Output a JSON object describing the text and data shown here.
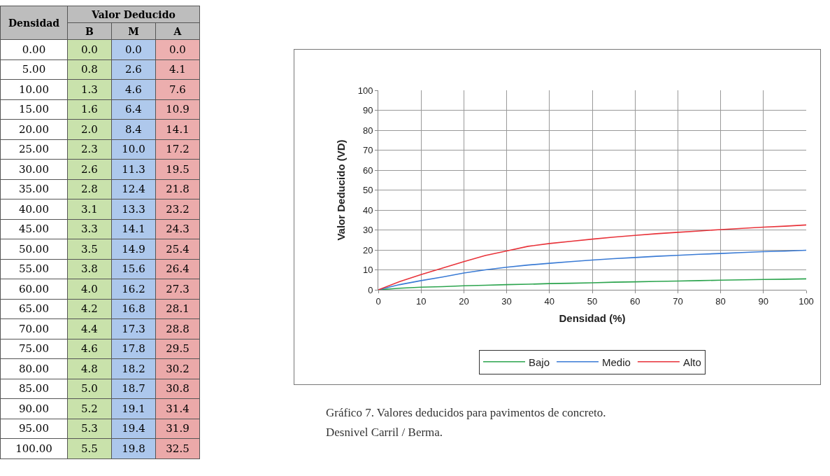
{
  "chart_data": [
    {
      "type": "heatmap",
      "xlabel": "Valor Deducido",
      "ylabel": "Densidad",
      "categories": [
        "B",
        "M",
        "A"
      ],
      "y_categories": [
        "0.00",
        "5.00",
        "10.00",
        "15.00",
        "20.00",
        "25.00",
        "30.00",
        "35.00",
        "40.00",
        "45.00",
        "50.00",
        "55.00",
        "60.00",
        "65.00",
        "70.00",
        "75.00",
        "80.00",
        "85.00",
        "90.00",
        "95.00",
        "100.00"
      ],
      "colors": [
        "#c5e0a5",
        "#a9c5eb",
        "#eba9a9"
      ],
      "data_labels": true,
      "cells": [
        [
          0.0,
          0.0,
          0.0
        ],
        [
          0.8,
          2.6,
          4.1
        ],
        [
          1.3,
          4.6,
          7.6
        ],
        [
          1.6,
          6.4,
          10.9
        ],
        [
          2.0,
          8.4,
          14.1
        ],
        [
          2.3,
          10.0,
          17.2
        ],
        [
          2.6,
          11.3,
          19.5
        ],
        [
          2.8,
          12.4,
          21.8
        ],
        [
          3.1,
          13.3,
          23.2
        ],
        [
          3.3,
          14.1,
          24.3
        ],
        [
          3.5,
          14.9,
          25.4
        ],
        [
          3.8,
          15.6,
          26.4
        ],
        [
          4.0,
          16.2,
          27.3
        ],
        [
          4.2,
          16.8,
          28.1
        ],
        [
          4.4,
          17.3,
          28.8
        ],
        [
          4.6,
          17.8,
          29.5
        ],
        [
          4.8,
          18.2,
          30.2
        ],
        [
          5.0,
          18.7,
          30.8
        ],
        [
          5.2,
          19.1,
          31.4
        ],
        [
          5.3,
          19.4,
          31.9
        ],
        [
          5.5,
          19.8,
          32.5
        ]
      ],
      "cell_labels": [
        [
          "0.0",
          "0.0",
          "0.0"
        ],
        [
          "0.8",
          "2.6",
          "4.1"
        ],
        [
          "1.3",
          "4.6",
          "7.6"
        ],
        [
          "1.6",
          "6.4",
          "10.9"
        ],
        [
          "2.0",
          "8.4",
          "14.1"
        ],
        [
          "2.3",
          "10.0",
          "17.2"
        ],
        [
          "2.6",
          "11.3",
          "19.5"
        ],
        [
          "2.8",
          "12.4",
          "21.8"
        ],
        [
          "3.1",
          "13.3",
          "23.2"
        ],
        [
          "3.3",
          "14.1",
          "24.3"
        ],
        [
          "3.5",
          "14.9",
          "25.4"
        ],
        [
          "3.8",
          "15.6",
          "26.4"
        ],
        [
          "4.0",
          "16.2",
          "27.3"
        ],
        [
          "4.2",
          "16.8",
          "28.1"
        ],
        [
          "4.4",
          "17.3",
          "28.8"
        ],
        [
          "4.6",
          "17.8",
          "29.5"
        ],
        [
          "4.8",
          "18.2",
          "30.2"
        ],
        [
          "5.0",
          "18.7",
          "30.8"
        ],
        [
          "5.2",
          "19.1",
          "31.4"
        ],
        [
          "5.3",
          "19.4",
          "31.9"
        ],
        [
          "5.5",
          "19.8",
          "32.5"
        ]
      ]
    },
    {
      "type": "line",
      "xlabel": "Densidad (%)",
      "ylabel": "Valor Deducido (VD)",
      "x": [
        0,
        5,
        10,
        15,
        20,
        25,
        30,
        35,
        40,
        45,
        50,
        55,
        60,
        65,
        70,
        75,
        80,
        85,
        90,
        95,
        100
      ],
      "series": [
        {
          "name": "Bajo",
          "color": "#2ca44e",
          "values": [
            0.0,
            0.8,
            1.3,
            1.6,
            2.0,
            2.3,
            2.6,
            2.8,
            3.1,
            3.3,
            3.5,
            3.8,
            4.0,
            4.2,
            4.4,
            4.6,
            4.8,
            5.0,
            5.2,
            5.3,
            5.5
          ]
        },
        {
          "name": "Medio",
          "color": "#3a7bd5",
          "values": [
            0.0,
            2.6,
            4.6,
            6.4,
            8.4,
            10.0,
            11.3,
            12.4,
            13.3,
            14.1,
            14.9,
            15.6,
            16.2,
            16.8,
            17.3,
            17.8,
            18.2,
            18.7,
            19.1,
            19.4,
            19.8
          ]
        },
        {
          "name": "Alto",
          "color": "#e8333a",
          "values": [
            0.0,
            4.1,
            7.6,
            10.9,
            14.1,
            17.2,
            19.5,
            21.8,
            23.2,
            24.3,
            25.4,
            26.4,
            27.3,
            28.1,
            28.8,
            29.5,
            30.2,
            30.8,
            31.4,
            31.9,
            32.5
          ]
        }
      ],
      "xlim": [
        0,
        100
      ],
      "xticks": [
        0,
        10,
        20,
        30,
        40,
        50,
        60,
        70,
        80,
        90,
        100
      ],
      "ylim": [
        0,
        100
      ],
      "yticks": [
        0,
        10,
        20,
        30,
        40,
        50,
        60,
        70,
        80,
        90,
        100
      ],
      "grid": true,
      "legend": "bottom",
      "marker": "none",
      "line_style": "solid",
      "annotations": [
        "Gráfico 7.  Valores deducidos para pavimentos de concreto. Desnivel Carril / Berma."
      ]
    }
  ]
}
